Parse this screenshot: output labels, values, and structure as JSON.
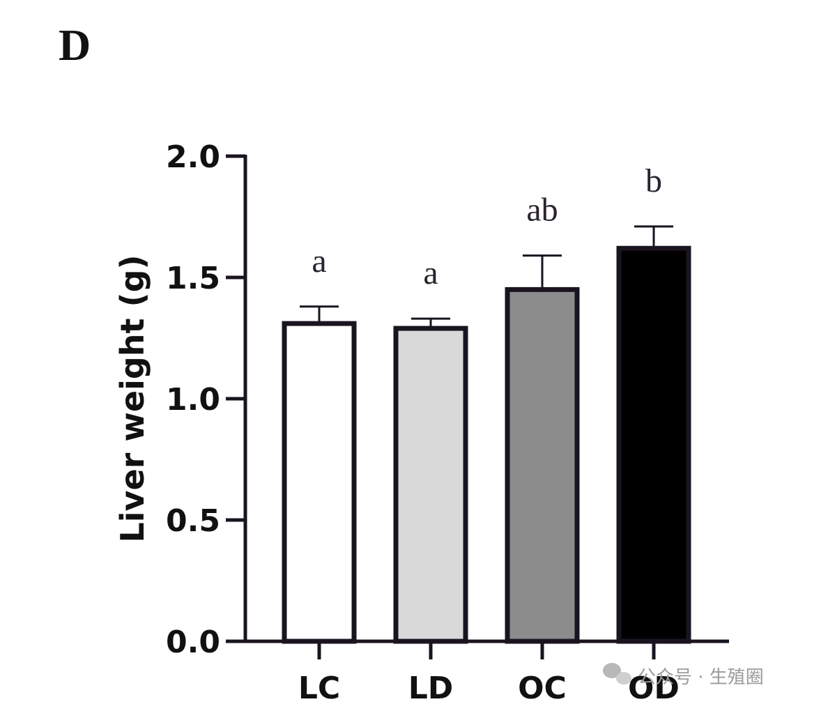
{
  "panel_label": "D",
  "watermark": {
    "text": "公众号 · 生殖圈",
    "icon": "wechat-icon"
  },
  "chart_data": {
    "type": "bar",
    "title": "",
    "xlabel": "",
    "ylabel": "Liver weight (g)",
    "ylim": [
      0,
      2.0
    ],
    "yticks": [
      0.0,
      0.5,
      1.0,
      1.5,
      2.0
    ],
    "ytick_labels": [
      "0.0",
      "0.5",
      "1.0",
      "1.5",
      "2.0"
    ],
    "grid": false,
    "categories": [
      "LC",
      "LD",
      "OC",
      "OD"
    ],
    "values": [
      1.31,
      1.29,
      1.45,
      1.62
    ],
    "errors": [
      0.07,
      0.04,
      0.14,
      0.09
    ],
    "significance": [
      "a",
      "a",
      "ab",
      "b"
    ],
    "bar_colors": [
      "#ffffff",
      "#d9d9d9",
      "#8c8c8c",
      "#000000"
    ],
    "edge_color": "#1a1420"
  }
}
